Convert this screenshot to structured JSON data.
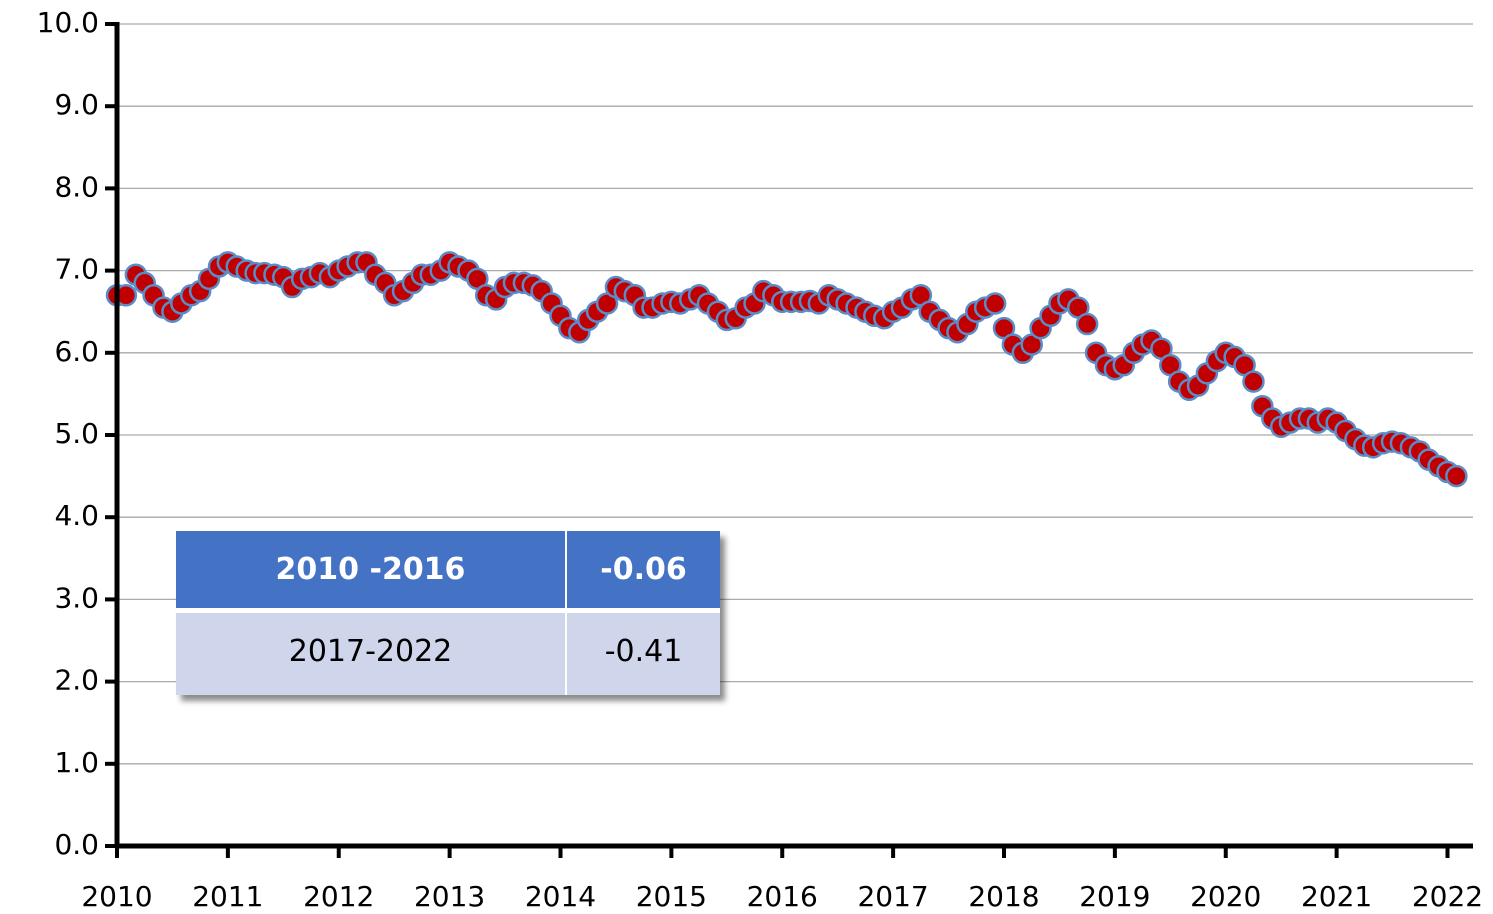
{
  "chart_data": {
    "type": "scatter",
    "x": [
      2010,
      2010.08,
      2010.17,
      2010.25,
      2010.33,
      2010.42,
      2010.5,
      2010.58,
      2010.67,
      2010.75,
      2010.83,
      2010.92,
      2011,
      2011.08,
      2011.17,
      2011.25,
      2011.33,
      2011.42,
      2011.5,
      2011.58,
      2011.67,
      2011.75,
      2011.83,
      2011.92,
      2012,
      2012.08,
      2012.17,
      2012.25,
      2012.33,
      2012.42,
      2012.5,
      2012.58,
      2012.67,
      2012.75,
      2012.83,
      2012.92,
      2013,
      2013.08,
      2013.17,
      2013.25,
      2013.33,
      2013.42,
      2013.5,
      2013.58,
      2013.67,
      2013.75,
      2013.83,
      2013.92,
      2014,
      2014.08,
      2014.17,
      2014.25,
      2014.33,
      2014.42,
      2014.5,
      2014.58,
      2014.67,
      2014.75,
      2014.83,
      2014.92,
      2015,
      2015.08,
      2015.17,
      2015.25,
      2015.33,
      2015.42,
      2015.5,
      2015.58,
      2015.67,
      2015.75,
      2015.83,
      2015.92,
      2016,
      2016.08,
      2016.17,
      2016.25,
      2016.33,
      2016.42,
      2016.5,
      2016.58,
      2016.67,
      2016.75,
      2016.83,
      2016.92,
      2017,
      2017.08,
      2017.17,
      2017.25,
      2017.33,
      2017.42,
      2017.5,
      2017.58,
      2017.67,
      2017.75,
      2017.83,
      2017.92,
      2018,
      2018.08,
      2018.17,
      2018.25,
      2018.33,
      2018.42,
      2018.5,
      2018.58,
      2018.67,
      2018.75,
      2018.83,
      2018.92,
      2019,
      2019.08,
      2019.17,
      2019.25,
      2019.33,
      2019.42,
      2019.5,
      2019.58,
      2019.67,
      2019.75,
      2019.83,
      2019.92,
      2020,
      2020.08,
      2020.17,
      2020.25,
      2020.33,
      2020.42,
      2020.5,
      2020.58,
      2020.67,
      2020.75,
      2020.83,
      2020.92,
      2021,
      2021.08,
      2021.17,
      2021.25,
      2021.33,
      2021.42,
      2021.5,
      2021.58,
      2021.67,
      2021.75,
      2021.83,
      2021.92,
      2022,
      2022.08
    ],
    "values": [
      6.7,
      6.7,
      6.95,
      6.85,
      6.7,
      6.55,
      6.5,
      6.6,
      6.7,
      6.75,
      6.9,
      7.05,
      7.1,
      7.05,
      7.0,
      6.97,
      6.97,
      6.95,
      6.92,
      6.8,
      6.9,
      6.92,
      6.97,
      6.92,
      7.0,
      7.05,
      7.1,
      7.1,
      6.95,
      6.85,
      6.7,
      6.75,
      6.85,
      6.95,
      6.95,
      7.0,
      7.1,
      7.05,
      7.0,
      6.9,
      6.7,
      6.65,
      6.8,
      6.85,
      6.85,
      6.82,
      6.75,
      6.6,
      6.45,
      6.3,
      6.25,
      6.4,
      6.5,
      6.6,
      6.8,
      6.75,
      6.7,
      6.55,
      6.55,
      6.6,
      6.62,
      6.6,
      6.65,
      6.7,
      6.6,
      6.5,
      6.4,
      6.42,
      6.55,
      6.6,
      6.75,
      6.7,
      6.62,
      6.62,
      6.62,
      6.63,
      6.6,
      6.7,
      6.65,
      6.6,
      6.55,
      6.5,
      6.45,
      6.42,
      6.5,
      6.55,
      6.65,
      6.7,
      6.5,
      6.4,
      6.3,
      6.25,
      6.35,
      6.5,
      6.55,
      6.6,
      6.3,
      6.1,
      6.0,
      6.1,
      6.3,
      6.45,
      6.6,
      6.65,
      6.55,
      6.35,
      6.0,
      5.85,
      5.8,
      5.85,
      6.0,
      6.1,
      6.15,
      6.05,
      5.85,
      5.65,
      5.55,
      5.6,
      5.75,
      5.9,
      6.0,
      5.95,
      5.85,
      5.65,
      5.35,
      5.2,
      5.1,
      5.15,
      5.2,
      5.2,
      5.15,
      5.2,
      5.15,
      5.05,
      4.95,
      4.87,
      4.85,
      4.9,
      4.92,
      4.9,
      4.85,
      4.8,
      4.7,
      4.62,
      4.55,
      4.5
    ],
    "color": "#c00000",
    "edge_color": "#5b8cc8",
    "xlim": [
      2010,
      2022.23
    ],
    "xticks": [
      2010,
      2011,
      2012,
      2013,
      2014,
      2015,
      2016,
      2017,
      2018,
      2019,
      2020,
      2021,
      2022
    ],
    "ylim": [
      0,
      10
    ],
    "yticks": [
      {
        "value": 0,
        "label": "0.0"
      },
      {
        "value": 1,
        "label": "1.0"
      },
      {
        "value": 2,
        "label": "2.0"
      },
      {
        "value": 3,
        "label": "3.0"
      },
      {
        "value": 4,
        "label": "4.0"
      },
      {
        "value": 5,
        "label": "5.0"
      },
      {
        "value": 6,
        "label": "6.0"
      },
      {
        "value": 7,
        "label": "7.0"
      },
      {
        "value": 8,
        "label": "8.0"
      },
      {
        "value": 9,
        "label": "9.0"
      },
      {
        "value": 10,
        "label": "10.0"
      }
    ],
    "grid": true,
    "table": {
      "rows": [
        [
          "2010 -2016",
          "-0.06"
        ],
        [
          "2017-2022",
          "-0.41"
        ]
      ]
    }
  }
}
